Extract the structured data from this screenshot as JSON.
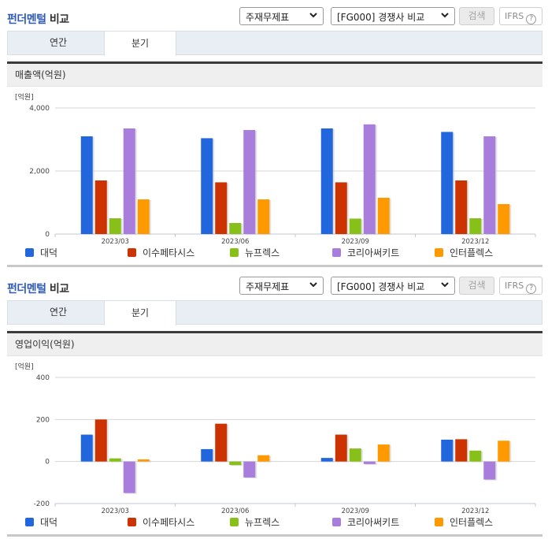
{
  "sections": [
    {
      "title_accent": "펀더멘털",
      "title_rest": " 비교",
      "select_statement": "주재무제표",
      "select_group": "[FG000] 경쟁사 비교",
      "search_label": "검색",
      "ifrs_label": "IFRS",
      "help_icon": "?",
      "tabs": [
        {
          "label": "연간",
          "active": false
        },
        {
          "label": "분기",
          "active": true
        }
      ],
      "chart_header": "매출액(억원)",
      "unit_label": "[억원]"
    },
    {
      "title_accent": "펀더멘털",
      "title_rest": " 비교",
      "select_statement": "주재무제표",
      "select_group": "[FG000] 경쟁사 비교",
      "search_label": "검색",
      "ifrs_label": "IFRS",
      "help_icon": "?",
      "tabs": [
        {
          "label": "연간",
          "active": false
        },
        {
          "label": "분기",
          "active": true
        }
      ],
      "chart_header": "영업이익(억원)",
      "unit_label": "[억원]"
    }
  ],
  "colors": {
    "대덕": "#2266dd",
    "이수페타시스": "#cc3300",
    "뉴프렉스": "#88c01a",
    "코리아써키트": "#a97ddb",
    "인터플렉스": "#ff9900",
    "title_accent": "#2f5bb7"
  },
  "chart_data": [
    {
      "type": "bar",
      "title": "매출액(억원)",
      "ylabel": "[억원]",
      "xlabel": "",
      "categories": [
        "2023/03",
        "2023/06",
        "2023/09",
        "2023/12"
      ],
      "yticks": [
        0,
        2000,
        4000
      ],
      "ytick_labels": [
        "0",
        "2,000",
        "4,000"
      ],
      "ylim": [
        0,
        4000
      ],
      "grid": true,
      "legend_position": "bottom",
      "series": [
        {
          "name": "대덕",
          "color": "#2266dd",
          "values": [
            3100,
            3040,
            3350,
            3240
          ]
        },
        {
          "name": "이수페타시스",
          "color": "#cc3300",
          "values": [
            1700,
            1640,
            1640,
            1700
          ]
        },
        {
          "name": "뉴프렉스",
          "color": "#88c01a",
          "values": [
            500,
            350,
            490,
            500
          ]
        },
        {
          "name": "코리아써키트",
          "color": "#a97ddb",
          "values": [
            3350,
            3300,
            3480,
            3100
          ]
        },
        {
          "name": "인터플렉스",
          "color": "#ff9900",
          "values": [
            1100,
            1100,
            1150,
            950
          ]
        }
      ]
    },
    {
      "type": "bar",
      "title": "영업이익(억원)",
      "ylabel": "[억원]",
      "xlabel": "",
      "categories": [
        "2023/03",
        "2023/06",
        "2023/09",
        "2023/12"
      ],
      "yticks": [
        -200,
        0,
        200,
        400
      ],
      "ytick_labels": [
        "-200",
        "0",
        "200",
        "400"
      ],
      "ylim": [
        -200,
        400
      ],
      "grid": true,
      "legend_position": "bottom",
      "series": [
        {
          "name": "대덕",
          "color": "#2266dd",
          "values": [
            128,
            59,
            17,
            104
          ]
        },
        {
          "name": "이수페타시스",
          "color": "#cc3300",
          "values": [
            200,
            180,
            128,
            106
          ]
        },
        {
          "name": "뉴프렉스",
          "color": "#88c01a",
          "values": [
            15,
            -17,
            62,
            52
          ]
        },
        {
          "name": "코리아써키트",
          "color": "#a97ddb",
          "values": [
            -150,
            -76,
            -12,
            -86
          ]
        },
        {
          "name": "인터플렉스",
          "color": "#ff9900",
          "values": [
            10,
            30,
            81,
            99
          ]
        }
      ]
    }
  ]
}
